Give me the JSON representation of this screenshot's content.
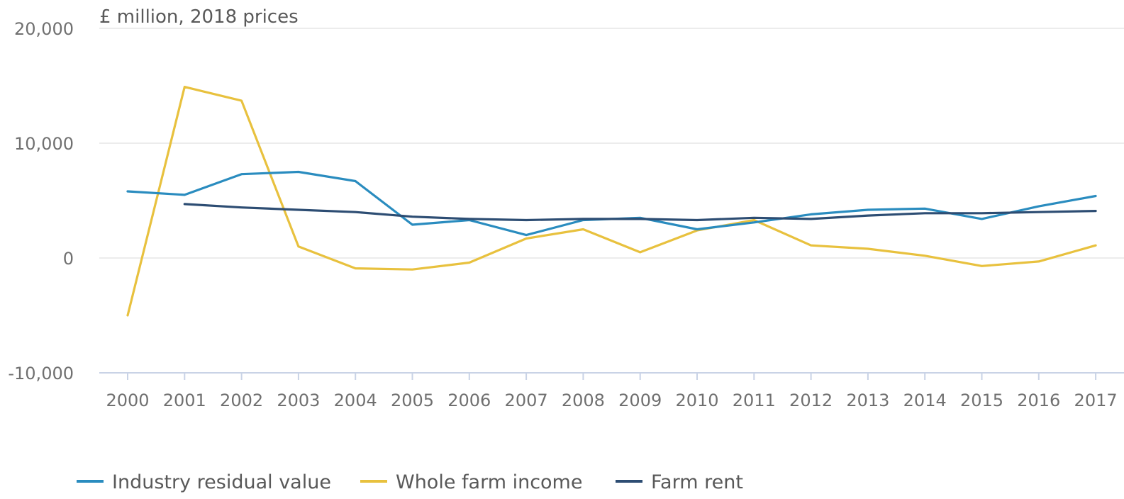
{
  "chart_data": {
    "type": "line",
    "title": "",
    "unit_label": "£ million, 2018 prices",
    "xlabel": "",
    "ylabel": "",
    "x": [
      2000,
      2001,
      2002,
      2003,
      2004,
      2005,
      2006,
      2007,
      2008,
      2009,
      2010,
      2011,
      2012,
      2013,
      2014,
      2015,
      2016,
      2017
    ],
    "x_tick_labels": [
      "2000",
      "2001",
      "2002",
      "2003",
      "2004",
      "2005",
      "2006",
      "2007",
      "2008",
      "2009",
      "2010",
      "2011",
      "2012",
      "2013",
      "2014",
      "2015",
      "2016",
      "2017"
    ],
    "ylim": [
      -10000,
      20000
    ],
    "y_ticks": [
      -10000,
      0,
      10000,
      20000
    ],
    "y_tick_labels": [
      "-10,000",
      "0",
      "10,000",
      "20,000"
    ],
    "grid": true,
    "legend_position": "bottom-left",
    "series": [
      {
        "name": "Industry residual value",
        "color": "#2a8cbf",
        "values": [
          5800,
          5500,
          7300,
          7500,
          6700,
          2900,
          3300,
          2000,
          3300,
          3500,
          2500,
          3100,
          3800,
          4200,
          4300,
          3400,
          4500,
          5400
        ]
      },
      {
        "name": "Whole farm income",
        "color": "#e8c13e",
        "values": [
          -5000,
          14900,
          13700,
          1000,
          -900,
          -1000,
          -400,
          1700,
          2500,
          500,
          2400,
          3300,
          1100,
          800,
          200,
          -700,
          -300,
          1100
        ]
      },
      {
        "name": "Farm rent",
        "color": "#2d4d73",
        "values": [
          null,
          4700,
          4400,
          4200,
          4000,
          3600,
          3400,
          3300,
          3400,
          3400,
          3300,
          3500,
          3400,
          3700,
          3900,
          3900,
          4000,
          4100
        ]
      }
    ]
  }
}
